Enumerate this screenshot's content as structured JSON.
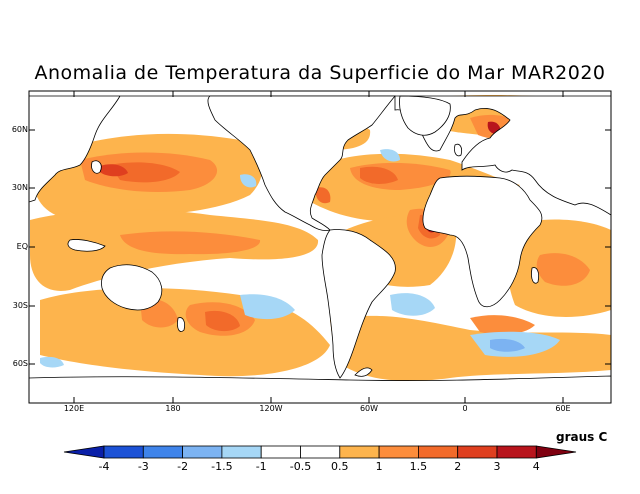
{
  "title": "Anomalia de Temperatura da Superficie do Mar MAR2020",
  "lat_labels": [
    "60N",
    "30N",
    "EQ",
    "30S",
    "60S"
  ],
  "lon_labels": [
    "120E",
    "180",
    "120W",
    "60W",
    "0",
    "60E"
  ],
  "units": "graus C",
  "colorbar": {
    "levels": [
      "-4",
      "-3",
      "-2",
      "-1.5",
      "-1",
      "-0.5",
      "0.5",
      "1",
      "1.5",
      "2",
      "3",
      "4"
    ],
    "colors": [
      "#0a1fa8",
      "#1c52d6",
      "#3f84ea",
      "#7cb3f2",
      "#a6d7f6",
      "#ffffff",
      "#fdb44d",
      "#fc8d3c",
      "#f26a2a",
      "#df3f1f",
      "#b8141c",
      "#7f0010"
    ]
  },
  "palette": {
    "land": "#ffffff",
    "coast": "#000000",
    "neutral_ocean": "#ffffff"
  }
}
